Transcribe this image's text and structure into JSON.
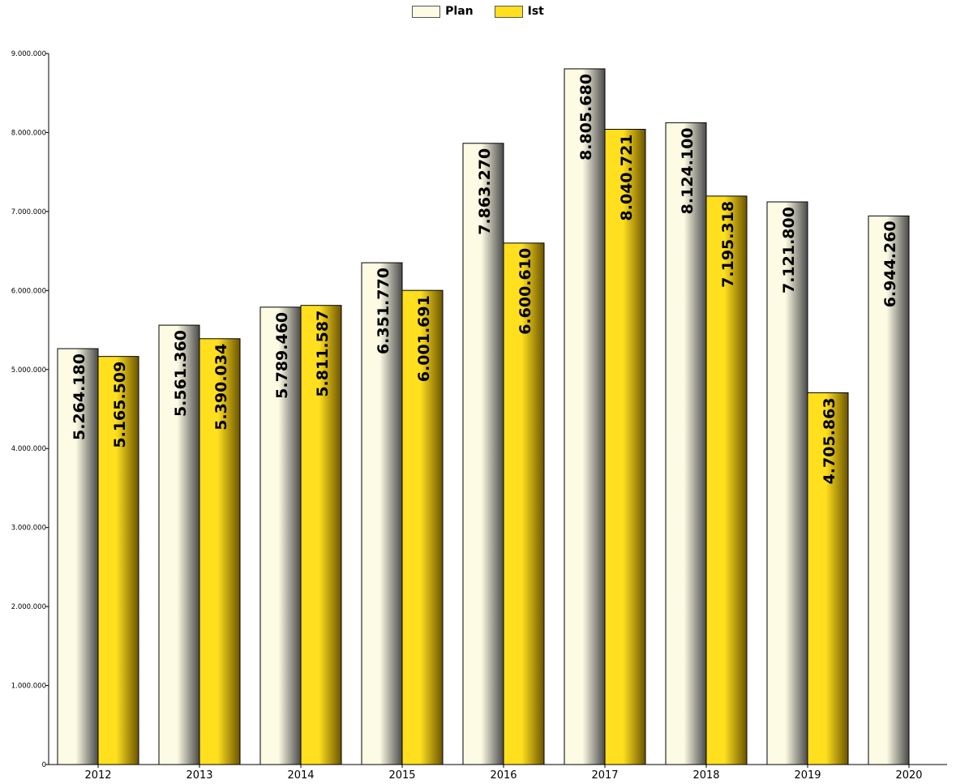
{
  "chart_data": {
    "type": "bar",
    "categories": [
      "2012",
      "2013",
      "2014",
      "2015",
      "2016",
      "2017",
      "2018",
      "2019",
      "2020"
    ],
    "series": [
      {
        "name": "Plan",
        "values": [
          5264180,
          5561360,
          5789460,
          6351770,
          7863270,
          8805680,
          8124100,
          7121800,
          6944260
        ],
        "labels": [
          "5.264.180",
          "5.561.360",
          "5.789.460",
          "6.351.770",
          "7.863.270",
          "8.805.680",
          "8.124.100",
          "7.121.800",
          "6.944.260"
        ],
        "color": "#fdfbe3",
        "shade": "#4a4a4a"
      },
      {
        "name": "Ist",
        "values": [
          5165509,
          5390034,
          5811587,
          6001691,
          6600610,
          8040721,
          7195318,
          4705863,
          null
        ],
        "labels": [
          "5.165.509",
          "5.390.034",
          "5.811.587",
          "6.001.691",
          "6.600.610",
          "8.040.721",
          "7.195.318",
          "4.705.863",
          ""
        ],
        "color": "#ffdf1e",
        "shade": "#6b5400"
      }
    ],
    "ylim": [
      0,
      9000000
    ],
    "yticks": [
      0,
      1000000,
      2000000,
      3000000,
      4000000,
      5000000,
      6000000,
      7000000,
      8000000,
      9000000
    ],
    "ytick_labels": [
      "0",
      "1.000.000",
      "2.000.000",
      "3.000.000",
      "4.000.000",
      "5.000.000",
      "6.000.000",
      "7.000.000",
      "8.000.000",
      "9.000.000"
    ],
    "grid": false,
    "legend_position": "top-center",
    "title": "",
    "xlabel": "",
    "ylabel": ""
  }
}
